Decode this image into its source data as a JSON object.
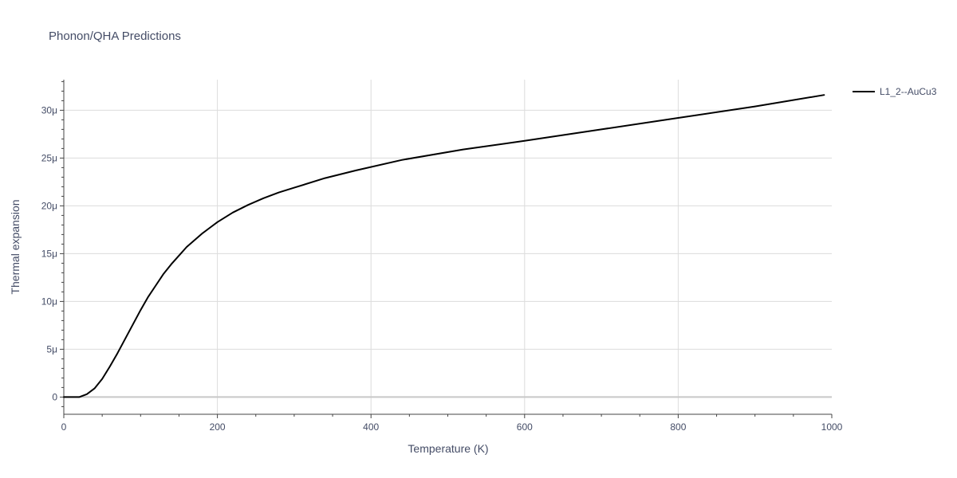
{
  "chart_data": {
    "type": "line",
    "title": "Phonon/QHA Predictions",
    "xlabel": "Temperature (K)",
    "ylabel": "Thermal expansion",
    "xlim": [
      0,
      1000
    ],
    "ylim": [
      -1.8e-06,
      3.32e-05
    ],
    "x_ticks": [
      {
        "value": 0,
        "label": "0"
      },
      {
        "value": 200,
        "label": "200"
      },
      {
        "value": 400,
        "label": "400"
      },
      {
        "value": 600,
        "label": "600"
      },
      {
        "value": 800,
        "label": "800"
      },
      {
        "value": 1000,
        "label": "1000"
      }
    ],
    "y_ticks": [
      {
        "value": 0,
        "label": "0"
      },
      {
        "value": 5e-06,
        "label": "5μ"
      },
      {
        "value": 1e-05,
        "label": "10μ"
      },
      {
        "value": 1.5e-05,
        "label": "15μ"
      },
      {
        "value": 2e-05,
        "label": "20μ"
      },
      {
        "value": 2.5e-05,
        "label": "25μ"
      },
      {
        "value": 3e-05,
        "label": "30μ"
      }
    ],
    "grid": true,
    "legend_position": "top-right",
    "series": [
      {
        "name": "L1_2--AuCu3",
        "color": "#000000",
        "x": [
          0,
          10,
          20,
          30,
          40,
          50,
          60,
          70,
          80,
          90,
          100,
          110,
          120,
          130,
          140,
          150,
          160,
          170,
          180,
          190,
          200,
          220,
          240,
          260,
          280,
          300,
          340,
          380,
          440,
          520,
          600,
          700,
          800,
          900,
          990
        ],
        "y": [
          0,
          0,
          0,
          3e-07,
          9e-07,
          1.9e-06,
          3.2e-06,
          4.6e-06,
          6.1e-06,
          7.6e-06,
          9.1e-06,
          1.05e-05,
          1.17e-05,
          1.29e-05,
          1.39e-05,
          1.48e-05,
          1.57e-05,
          1.64e-05,
          1.71e-05,
          1.77e-05,
          1.83e-05,
          1.93e-05,
          2.01e-05,
          2.08e-05,
          2.14e-05,
          2.19e-05,
          2.29e-05,
          2.37e-05,
          2.48e-05,
          2.59e-05,
          2.68e-05,
          2.8e-05,
          2.92e-05,
          3.04e-05,
          3.16e-05
        ]
      }
    ]
  }
}
